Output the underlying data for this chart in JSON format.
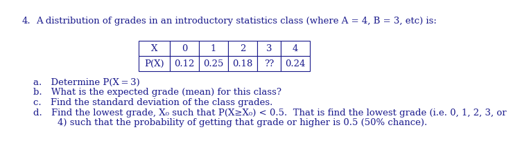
{
  "title_num": "4.",
  "title_body": "A distribution of grades in an introductory statistics class (where A = 4, B = 3, etc) is:",
  "table_headers": [
    "X",
    "0",
    "1",
    "2",
    "3",
    "4"
  ],
  "table_row_label": "P(X)",
  "table_values": [
    "0.12",
    "0.25",
    "0.18",
    "??",
    "0.24"
  ],
  "q_a": "a. Determine P(X = 3)",
  "q_b": "b. What is the expected grade (mean) for this class?",
  "q_c": "c. Find the standard deviation of the class grades.",
  "q_d1": "d. Find the lowest grade, X₀ such that P(X≥X₀) < 0.5.  That is find the lowest grade (i.e. 0, 1, 2, 3, or",
  "q_d2": "    4) such that the probability of getting that grade or higher is 0.5 (50% chance).",
  "bg_color": "#ffffff",
  "text_color": "#1a1a8c",
  "font_size": 9.5,
  "table_font_size": 9.5
}
